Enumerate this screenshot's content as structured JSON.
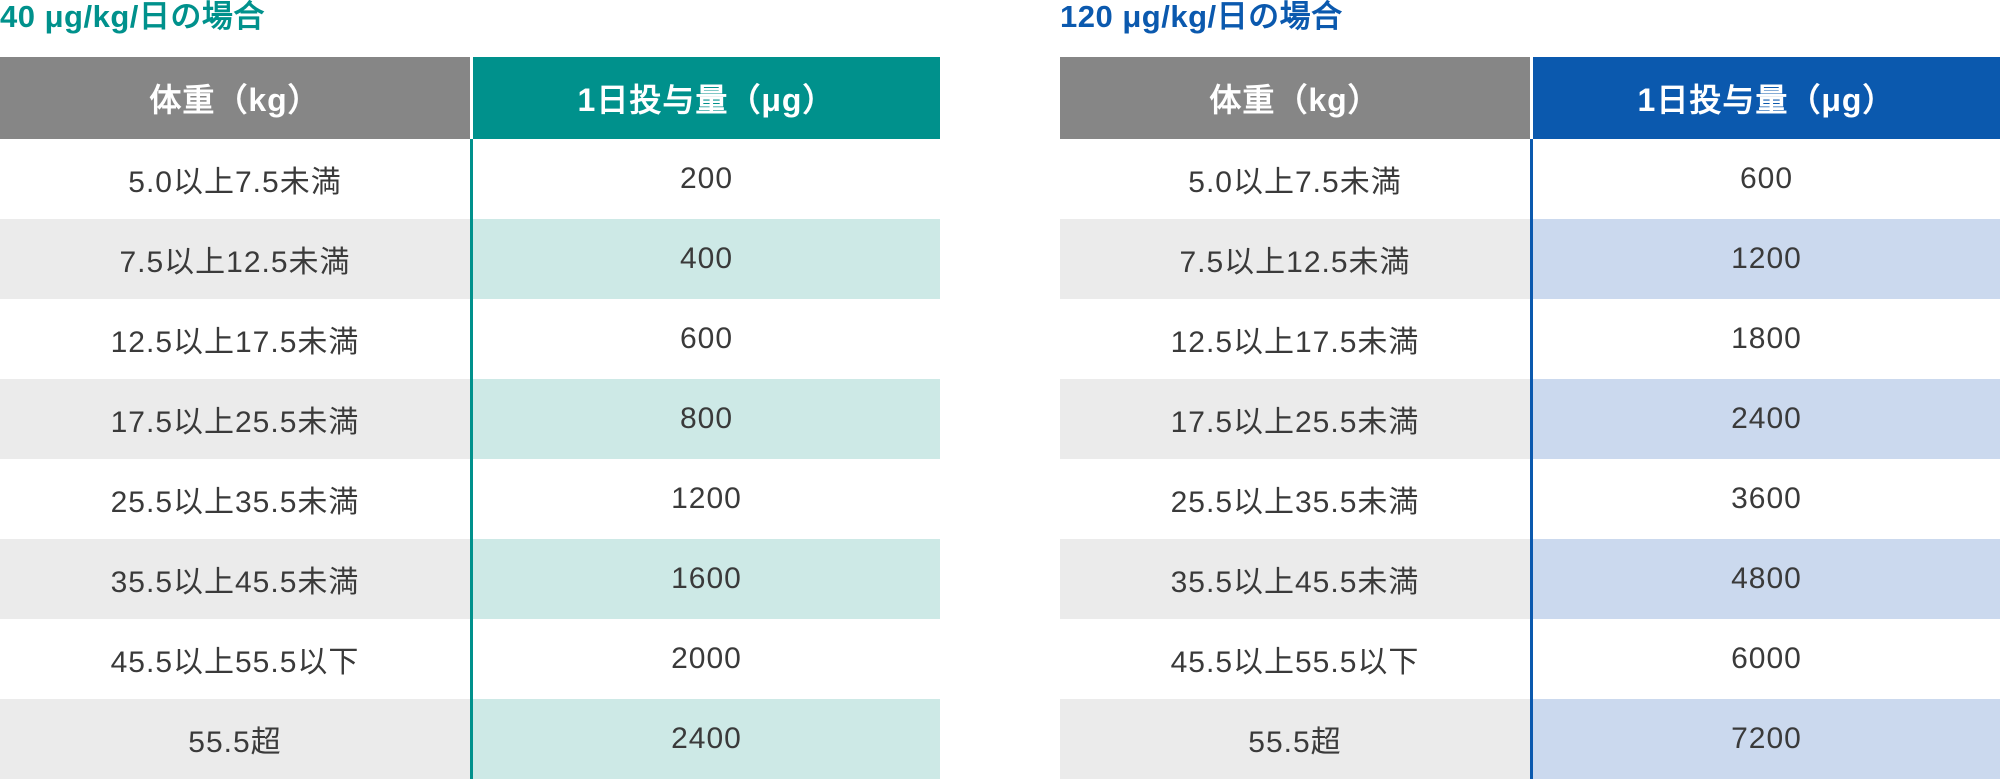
{
  "shared_colors": {
    "background": "#FFFFFF",
    "weight_header_bg": "#868686",
    "weight_header_text": "#FFFFFF",
    "weight_stripe_bg": "#EBEBEB",
    "cell_text": "#3A3A3A"
  },
  "chart_data": [
    {
      "type": "table",
      "title": "40 μg/kg/日の場合",
      "columns": [
        "体重（kg）",
        "1日投与量（μg）"
      ],
      "rows": [
        [
          "5.0以上7.5未満",
          "200"
        ],
        [
          "7.5以上12.5未満",
          "400"
        ],
        [
          "12.5以上17.5未満",
          "600"
        ],
        [
          "17.5以上25.5未満",
          "800"
        ],
        [
          "25.5以上35.5未満",
          "1200"
        ],
        [
          "35.5以上45.5未満",
          "1600"
        ],
        [
          "45.5以上55.5以下",
          "2000"
        ],
        [
          "55.5超",
          "2400"
        ]
      ],
      "colors": {
        "accent": "#00918C",
        "stripe": "#CDE9E6"
      }
    },
    {
      "type": "table",
      "title": "120 μg/kg/日の場合",
      "columns": [
        "体重（kg）",
        "1日投与量（μg）"
      ],
      "rows": [
        [
          "5.0以上7.5未満",
          "600"
        ],
        [
          "7.5以上12.5未満",
          "1200"
        ],
        [
          "12.5以上17.5未満",
          "1800"
        ],
        [
          "17.5以上25.5未満",
          "2400"
        ],
        [
          "25.5以上35.5未満",
          "3600"
        ],
        [
          "35.5以上45.5未満",
          "4800"
        ],
        [
          "45.5以上55.5以下",
          "6000"
        ],
        [
          "55.5超",
          "7200"
        ]
      ],
      "colors": {
        "accent": "#0B59AE",
        "stripe": "#CBD9EE"
      }
    }
  ]
}
